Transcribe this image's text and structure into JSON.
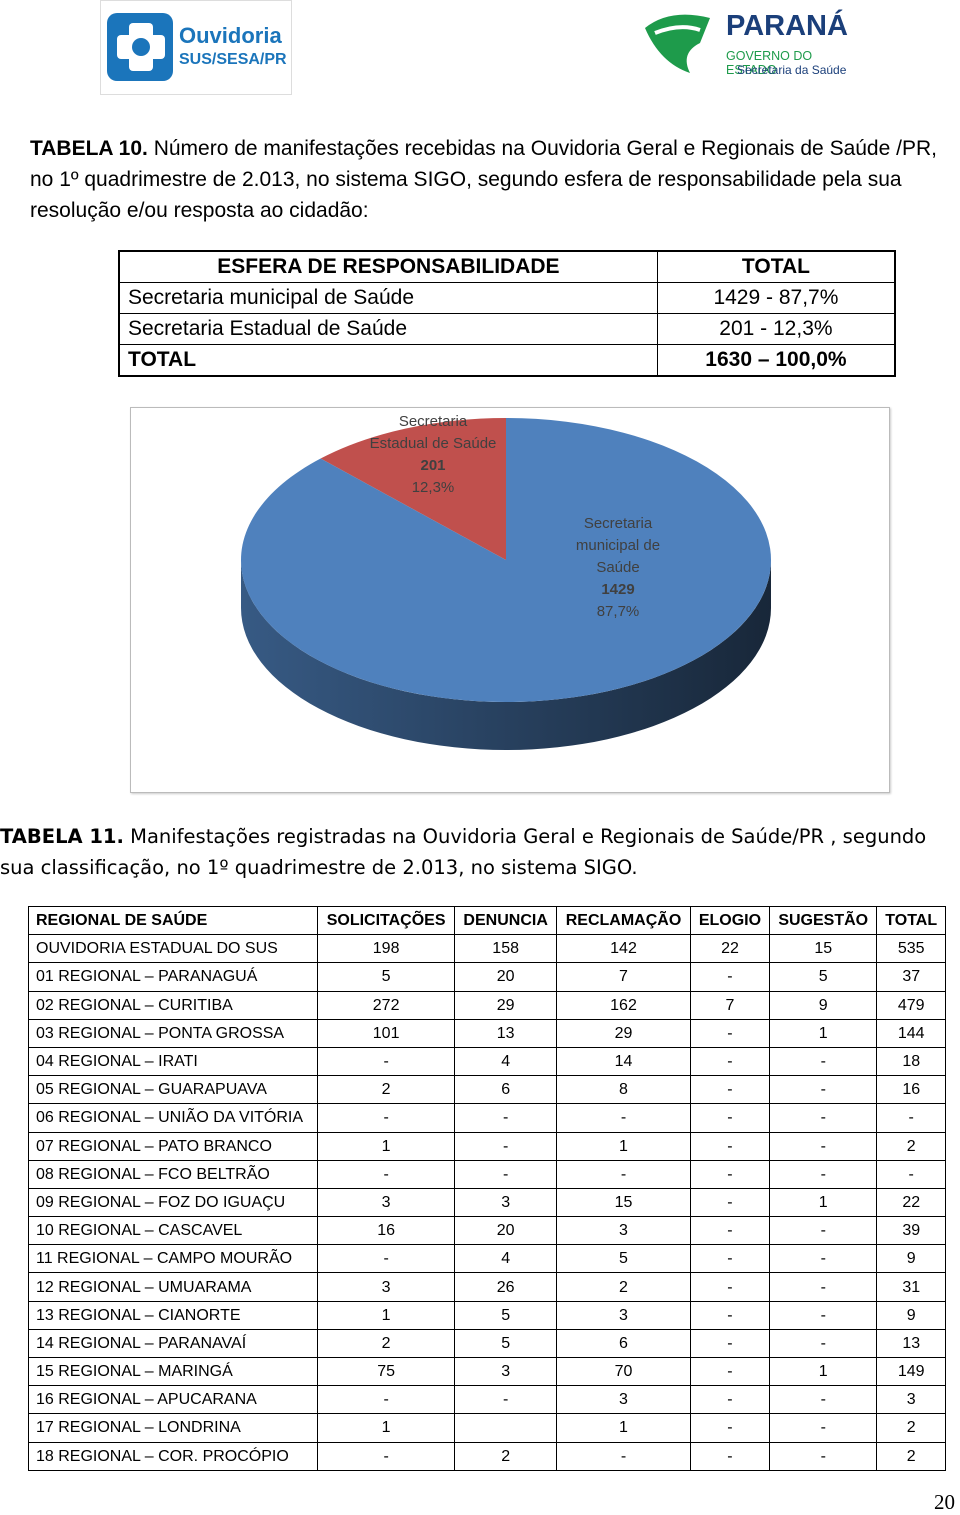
{
  "header": {
    "logo_left": {
      "line1": "Ouvidoria",
      "line2": "SUS/SESA/PR"
    },
    "logo_right": {
      "title": "PARANÁ",
      "line1": "GOVERNO DO ESTADO",
      "line2": "Secretaria da Saúde"
    }
  },
  "table10": {
    "caption_label": "TABELA 10.",
    "caption": "Número de manifestações recebidas na Ouvidoria Geral e Regionais de Saúde /PR,  no 1º quadrimestre de 2.013, no sistema SIGO, segundo esfera de responsabilidade pela sua resolução e/ou resposta ao cidadão:",
    "columns": [
      "ESFERA DE RESPONSABILIDADE",
      "TOTAL"
    ],
    "rows": [
      [
        "Secretaria municipal de Saúde",
        "1429 - 87,7%"
      ],
      [
        "Secretaria Estadual de Saúde",
        "201 - 12,3%"
      ]
    ],
    "total": [
      "TOTAL",
      "1630 – 100,0%"
    ]
  },
  "chart_data": {
    "type": "pie",
    "categories": [
      "Secretaria Estadual de Saúde",
      "Secretaria municipal de Saúde"
    ],
    "values": [
      201,
      1429
    ],
    "percent_labels": [
      "12,3%",
      "87,7%"
    ],
    "colors": [
      "#c0504d",
      "#4f81bd"
    ]
  },
  "table11": {
    "caption_label": "TABELA 11.",
    "caption": "Manifestações registradas na Ouvidoria Geral e Regionais de Saúde/PR , segundo sua classificação, no 1º quadrimestre de   2.013, no sistema SIGO.",
    "columns": [
      "REGIONAL DE SAÚDE",
      "SOLICITAÇÕES",
      "DENUNCIA",
      "RECLAMAÇÃO",
      "ELOGIO",
      "SUGESTÃO",
      "TOTAL"
    ],
    "rows": [
      [
        "OUVIDORIA ESTADUAL DO SUS",
        "198",
        "158",
        "142",
        "22",
        "15",
        "535"
      ],
      [
        "01 REGIONAL – PARANAGUÁ",
        "5",
        "20",
        "7",
        "-",
        "5",
        "37"
      ],
      [
        "02 REGIONAL – CURITIBA",
        "272",
        "29",
        "162",
        "7",
        "9",
        "479"
      ],
      [
        "03 REGIONAL – PONTA GROSSA",
        "101",
        "13",
        "29",
        "-",
        "1",
        "144"
      ],
      [
        "04 REGIONAL – IRATI",
        "-",
        "4",
        "14",
        "-",
        "-",
        "18"
      ],
      [
        "05 REGIONAL – GUARAPUAVA",
        "2",
        "6",
        "8",
        "-",
        "-",
        "16"
      ],
      [
        "06 REGIONAL – UNIÃO DA VITÓRIA",
        "-",
        "-",
        "-",
        "-",
        "-",
        "-"
      ],
      [
        "07 REGIONAL – PATO BRANCO",
        "1",
        "-",
        "1",
        "-",
        "-",
        "2"
      ],
      [
        "08 REGIONAL – FCO BELTRÃO",
        "-",
        "-",
        "-",
        "-",
        "-",
        "-"
      ],
      [
        "09 REGIONAL – FOZ DO IGUAÇU",
        "3",
        "3",
        "15",
        "-",
        "1",
        "22"
      ],
      [
        "10 REGIONAL – CASCAVEL",
        "16",
        "20",
        "3",
        "-",
        "-",
        "39"
      ],
      [
        "11 REGIONAL – CAMPO MOURÃO",
        "-",
        "4",
        "5",
        "-",
        "-",
        "9"
      ],
      [
        "12 REGIONAL – UMUARAMA",
        "3",
        "26",
        "2",
        "-",
        "-",
        "31"
      ],
      [
        "13 REGIONAL – CIANORTE",
        "1",
        "5",
        "3",
        "-",
        "-",
        "9"
      ],
      [
        "14 REGIONAL – PARANAVAÍ",
        "2",
        "5",
        "6",
        "-",
        "-",
        "13"
      ],
      [
        "15 REGIONAL – MARINGÁ",
        "75",
        "3",
        "70",
        "-",
        "1",
        "149"
      ],
      [
        "16 REGIONAL – APUCARANA",
        "-",
        "-",
        "3",
        "-",
        "-",
        "3"
      ],
      [
        "17 REGIONAL – LONDRINA",
        "1",
        null,
        "1",
        "-",
        "-",
        "2"
      ],
      [
        "18 REGIONAL – COR. PROCÓPIO",
        "-",
        "2",
        "-",
        "-",
        "-",
        "2"
      ]
    ]
  },
  "footer": {
    "page_number": "20"
  }
}
